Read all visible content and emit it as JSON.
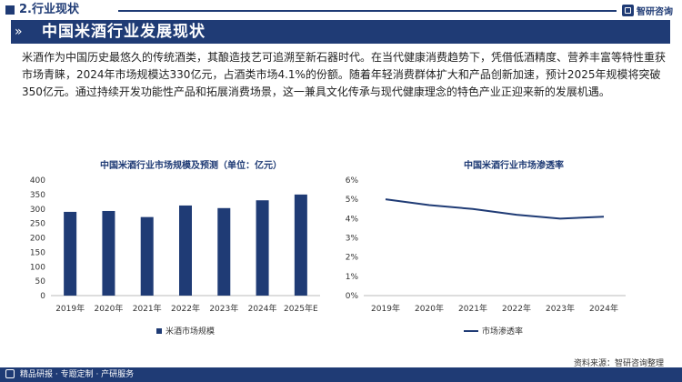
{
  "header": {
    "section_title": "2.行业现状",
    "brand": "智研咨询"
  },
  "banner": {
    "title": "中国米酒行业发展现状"
  },
  "paragraph": "米酒作为中国历史最悠久的传统酒类，其酿造技艺可追溯至新石器时代。在当代健康消费趋势下，凭借低酒精度、营养丰富等特性重获市场青睐，2024年市场规模达330亿元，占酒类市场4.1%的份额。随着年轻消费群体扩大和产品创新加速，预计2025年规模将突破350亿元。通过持续开发功能性产品和拓展消费场景，这一兼具文化传承与现代健康理念的特色产业正迎来新的发展机遇。",
  "charts": {
    "left_title": "中国米酒行业市场规模及预测（单位：亿元）",
    "right_title": "中国米酒行业市场渗透率",
    "left_legend": "米酒市场规模",
    "right_legend": "市场渗透率"
  },
  "chart_data": [
    {
      "type": "bar",
      "title": "中国米酒行业市场规模及预测（单位：亿元）",
      "categories": [
        "2019年",
        "2020年",
        "2021年",
        "2022年",
        "2023年",
        "2024年",
        "2025年E"
      ],
      "series": [
        {
          "name": "米酒市场规模",
          "values": [
            290,
            293,
            272,
            312,
            303,
            330,
            350
          ]
        }
      ],
      "ylim": [
        0,
        400
      ],
      "yticks": [
        0,
        50,
        100,
        150,
        200,
        250,
        300,
        350,
        400
      ],
      "color": "#1f3b75",
      "legend": "bottom"
    },
    {
      "type": "line",
      "title": "中国米酒行业市场渗透率",
      "categories": [
        "2019年",
        "2020年",
        "2021年",
        "2022年",
        "2023年",
        "2024年"
      ],
      "series": [
        {
          "name": "市场渗透率",
          "values": [
            5.0,
            4.7,
            4.5,
            4.2,
            4.0,
            4.1
          ]
        }
      ],
      "ylim": [
        0,
        6
      ],
      "yticks": [
        "0%",
        "1%",
        "2%",
        "3%",
        "4%",
        "5%",
        "6%"
      ],
      "color": "#1f3b75",
      "legend": "bottom"
    }
  ],
  "source": "资料来源：智研咨询整理",
  "footer": {
    "text": "精品研报 · 专题定制 · 产研服务"
  }
}
